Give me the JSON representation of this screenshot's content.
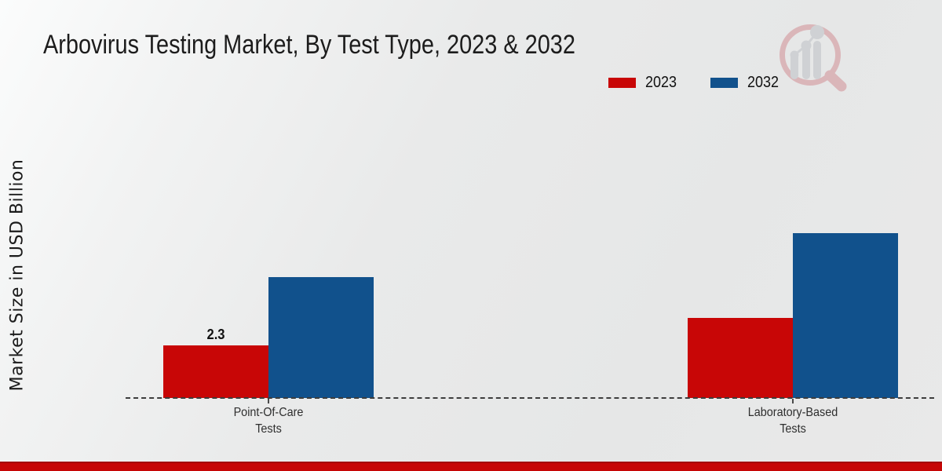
{
  "header": {
    "title": "Arbovirus Testing Market, By Test Type, 2023 & 2032"
  },
  "legend": {
    "position": "top-right",
    "items": [
      {
        "label": "2023",
        "color": "#c80606"
      },
      {
        "label": "2032",
        "color": "#11518c"
      }
    ]
  },
  "chart_data": {
    "type": "bar",
    "title": "Arbovirus Testing Market, By Test Type, 2023 & 2032",
    "xlabel": "",
    "ylabel": "Market Size in USD Billion",
    "categories": [
      "Point-Of-Care Tests",
      "Laboratory-Based Tests"
    ],
    "category_lines": [
      [
        "Point-Of-Care",
        "Tests"
      ],
      [
        "Laboratory-Based",
        "Tests"
      ]
    ],
    "series": [
      {
        "name": "2023",
        "color": "#c80606",
        "values": [
          2.3,
          3.5
        ],
        "data_labels": [
          "2.3",
          ""
        ]
      },
      {
        "name": "2032",
        "color": "#11518c",
        "values": [
          5.3,
          7.2
        ],
        "data_labels": [
          "",
          ""
        ]
      }
    ],
    "ylim": [
      0,
      12.5
    ],
    "grid": false,
    "legend_position": "top-right",
    "baseline_style": "dashed"
  },
  "branding": {
    "logo_icon": "magnifier-bar-chart-watermark",
    "footer_accent_color": "#c60606"
  }
}
